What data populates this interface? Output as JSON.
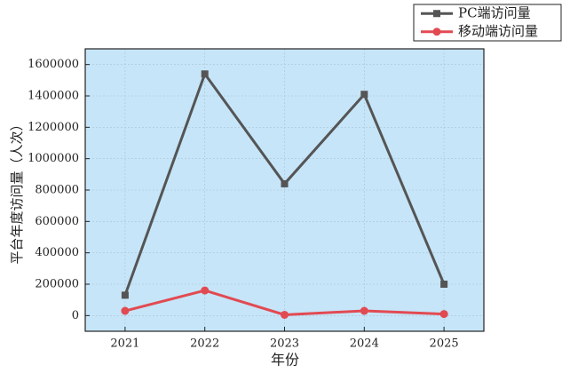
{
  "chart_data": {
    "type": "line",
    "x": [
      2021,
      2022,
      2023,
      2024,
      2025
    ],
    "xlim": [
      2020.5,
      2025.5
    ],
    "xticks": [
      2021,
      2022,
      2023,
      2024,
      2025
    ],
    "ylim": [
      -100000,
      1700000
    ],
    "yticks": [
      0,
      200000,
      400000,
      600000,
      800000,
      1000000,
      1200000,
      1400000,
      1600000
    ],
    "xlabel": "年份",
    "ylabel": "平台年度访问量（人次）",
    "grid": true,
    "legend": "top-right",
    "background": "#c6e5f8",
    "series": [
      {
        "name": "PC端访问量",
        "color": "#555555",
        "marker": "square",
        "values": [
          130000,
          1540000,
          840000,
          1410000,
          200000
        ]
      },
      {
        "name": "移动端访问量",
        "color": "#e24a52",
        "marker": "circle",
        "values": [
          30000,
          160000,
          5000,
          30000,
          10000
        ]
      }
    ]
  }
}
